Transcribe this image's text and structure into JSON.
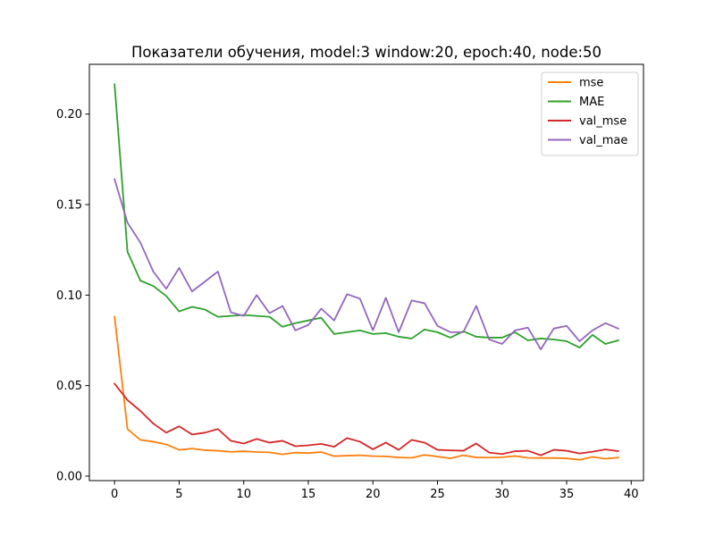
{
  "chart_data": {
    "type": "line",
    "title": "Показатели обучения, model:3 window:20, epoch:40, node:50",
    "xlabel": "",
    "ylabel": "",
    "xlim": [
      -1.95,
      40.95
    ],
    "ylim": [
      -0.0025,
      0.2275
    ],
    "x_ticks": [
      0,
      5,
      10,
      15,
      20,
      25,
      30,
      35,
      40
    ],
    "x_tick_labels": [
      "0",
      "5",
      "10",
      "15",
      "20",
      "25",
      "30",
      "35",
      "40"
    ],
    "y_ticks": [
      0.0,
      0.05,
      0.1,
      0.15,
      0.2
    ],
    "y_tick_labels": [
      "0.00",
      "0.05",
      "0.10",
      "0.15",
      "0.20"
    ],
    "grid": false,
    "legend_position": "top-right",
    "x": [
      0,
      1,
      2,
      3,
      4,
      5,
      6,
      7,
      8,
      9,
      10,
      11,
      12,
      13,
      14,
      15,
      16,
      17,
      18,
      19,
      20,
      21,
      22,
      23,
      24,
      25,
      26,
      27,
      28,
      29,
      30,
      31,
      32,
      33,
      34,
      35,
      36,
      37,
      38,
      39
    ],
    "series": [
      {
        "name": "mse",
        "color": "#ff7f0e",
        "values": [
          0.088,
          0.026,
          0.02,
          0.019,
          0.0175,
          0.0145,
          0.0152,
          0.0143,
          0.014,
          0.0134,
          0.0137,
          0.0133,
          0.0131,
          0.012,
          0.013,
          0.0127,
          0.0133,
          0.011,
          0.0113,
          0.0115,
          0.011,
          0.0109,
          0.0103,
          0.0101,
          0.0117,
          0.0108,
          0.0098,
          0.0115,
          0.0103,
          0.0102,
          0.0104,
          0.0111,
          0.0101,
          0.01,
          0.01,
          0.0098,
          0.009,
          0.0106,
          0.0096,
          0.0102
        ]
      },
      {
        "name": "MAE",
        "color": "#2ca02c",
        "values": [
          0.2165,
          0.124,
          0.108,
          0.105,
          0.0995,
          0.091,
          0.0935,
          0.092,
          0.088,
          0.0885,
          0.089,
          0.0885,
          0.088,
          0.0825,
          0.0845,
          0.086,
          0.0875,
          0.0785,
          0.0795,
          0.0805,
          0.0785,
          0.079,
          0.077,
          0.076,
          0.081,
          0.0795,
          0.0765,
          0.08,
          0.077,
          0.0765,
          0.0765,
          0.0795,
          0.075,
          0.076,
          0.0755,
          0.0745,
          0.071,
          0.078,
          0.073,
          0.075
        ]
      },
      {
        "name": "val_mse",
        "color": "#d62728",
        "values": [
          0.051,
          0.042,
          0.036,
          0.029,
          0.024,
          0.0275,
          0.023,
          0.024,
          0.026,
          0.0195,
          0.018,
          0.0205,
          0.0185,
          0.0195,
          0.0165,
          0.017,
          0.0178,
          0.0162,
          0.021,
          0.019,
          0.0148,
          0.0185,
          0.0145,
          0.02,
          0.0185,
          0.0145,
          0.0142,
          0.014,
          0.018,
          0.013,
          0.0122,
          0.0137,
          0.014,
          0.0115,
          0.0145,
          0.014,
          0.0125,
          0.0135,
          0.0147,
          0.0138
        ]
      },
      {
        "name": "val_mae",
        "color": "#9467bd",
        "values": [
          0.164,
          0.14,
          0.129,
          0.113,
          0.1035,
          0.115,
          0.102,
          0.1075,
          0.113,
          0.0905,
          0.0885,
          0.1,
          0.09,
          0.094,
          0.0805,
          0.0835,
          0.0925,
          0.086,
          0.1005,
          0.098,
          0.0805,
          0.0985,
          0.0795,
          0.097,
          0.0955,
          0.083,
          0.0795,
          0.0795,
          0.094,
          0.0755,
          0.073,
          0.0805,
          0.082,
          0.07,
          0.0815,
          0.083,
          0.0745,
          0.0805,
          0.0845,
          0.0815
        ]
      }
    ]
  }
}
